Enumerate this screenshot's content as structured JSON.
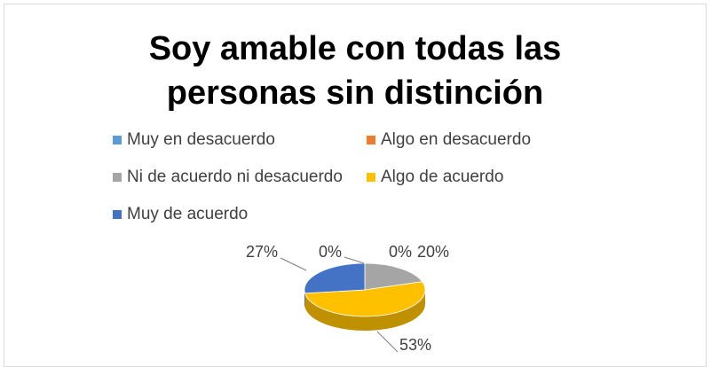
{
  "chart_data": {
    "type": "pie",
    "title": "Soy amable con todas las personas sin distinción",
    "categories": [
      "Muy en desacuerdo",
      "Algo en desacuerdo",
      "Ni de acuerdo ni desacuerdo",
      "Algo de acuerdo",
      "Muy de acuerdo"
    ],
    "values": [
      0,
      0,
      20,
      53,
      27
    ],
    "value_labels": [
      "0%",
      "0%",
      "20%",
      "53%",
      "27%"
    ],
    "colors": [
      "#5b9bd5",
      "#ed7d31",
      "#a5a5a5",
      "#ffc000",
      "#4472c4"
    ],
    "legend": "top"
  }
}
